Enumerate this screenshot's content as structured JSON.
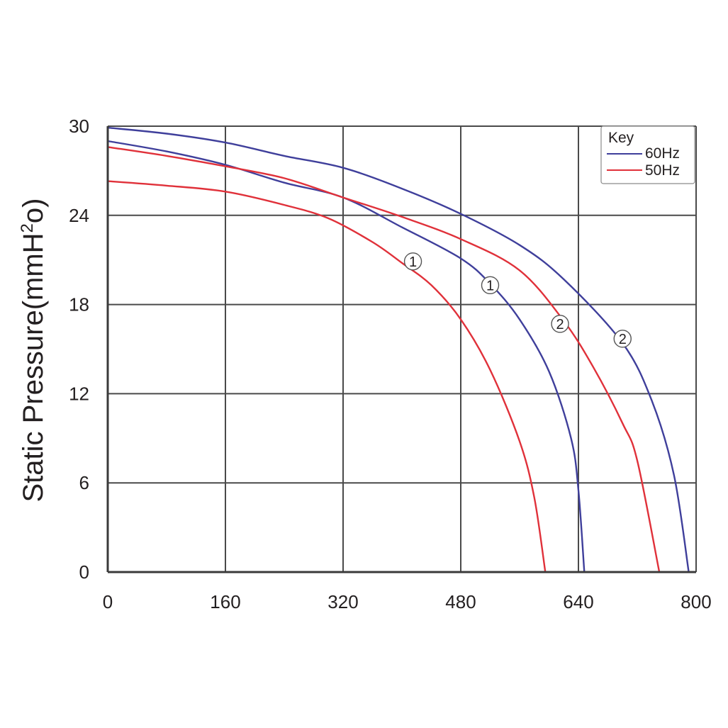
{
  "chart_data": {
    "type": "line",
    "title": "",
    "xlabel": "",
    "ylabel_main": "Static Pressure(mmH",
    "ylabel_sup": "2",
    "ylabel_tail": "o)",
    "xlim": [
      0,
      800
    ],
    "ylim": [
      0,
      30
    ],
    "xticks": [
      "0",
      "160",
      "320",
      "480",
      "640",
      "800"
    ],
    "yticks": [
      "0",
      "6",
      "12",
      "18",
      "24",
      "30"
    ],
    "xtick_values": [
      0,
      160,
      320,
      480,
      640,
      800
    ],
    "ytick_values": [
      0,
      6,
      12,
      18,
      24,
      30
    ],
    "grid": true,
    "legend": {
      "title": "Key",
      "placement": "top-right",
      "entries": [
        {
          "label": "60Hz",
          "color": "#3f3f9b"
        },
        {
          "label": "50Hz",
          "color": "#e0313a"
        }
      ]
    },
    "series": [
      {
        "curve_id": "1",
        "frequency": "50Hz",
        "color": "#e0313a",
        "points": [
          [
            0,
            26.3
          ],
          [
            80,
            26.0
          ],
          [
            160,
            25.6
          ],
          [
            240,
            24.7
          ],
          [
            300,
            23.8
          ],
          [
            360,
            22.2
          ],
          [
            400,
            20.8
          ],
          [
            440,
            19.3
          ],
          [
            480,
            17.0
          ],
          [
            520,
            13.6
          ],
          [
            560,
            8.8
          ],
          [
            580,
            5.0
          ],
          [
            595,
            0
          ]
        ]
      },
      {
        "curve_id": "1",
        "frequency": "60Hz",
        "color": "#3f3f9b",
        "points": [
          [
            0,
            29.0
          ],
          [
            80,
            28.3
          ],
          [
            160,
            27.4
          ],
          [
            240,
            26.2
          ],
          [
            320,
            25.2
          ],
          [
            400,
            23.2
          ],
          [
            480,
            21.1
          ],
          [
            520,
            19.4
          ],
          [
            560,
            17.0
          ],
          [
            600,
            13.5
          ],
          [
            630,
            9.0
          ],
          [
            640,
            5.5
          ],
          [
            648,
            0
          ]
        ]
      },
      {
        "curve_id": "2",
        "frequency": "50Hz",
        "color": "#e0313a",
        "points": [
          [
            0,
            28.6
          ],
          [
            80,
            28.0
          ],
          [
            160,
            27.3
          ],
          [
            240,
            26.5
          ],
          [
            320,
            25.2
          ],
          [
            400,
            23.9
          ],
          [
            480,
            22.4
          ],
          [
            560,
            20.3
          ],
          [
            620,
            16.9
          ],
          [
            660,
            13.8
          ],
          [
            700,
            10.0
          ],
          [
            720,
            7.5
          ],
          [
            750,
            0
          ]
        ]
      },
      {
        "curve_id": "2",
        "frequency": "60Hz",
        "color": "#3f3f9b",
        "points": [
          [
            0,
            29.9
          ],
          [
            80,
            29.5
          ],
          [
            160,
            28.9
          ],
          [
            240,
            28.0
          ],
          [
            320,
            27.2
          ],
          [
            400,
            25.8
          ],
          [
            480,
            24.1
          ],
          [
            560,
            22.0
          ],
          [
            620,
            19.7
          ],
          [
            700,
            15.4
          ],
          [
            740,
            11.5
          ],
          [
            770,
            6.5
          ],
          [
            790,
            0
          ]
        ]
      }
    ],
    "annotations": [
      {
        "label": "1",
        "x": 415,
        "y": 20.9,
        "curve": "1-50Hz"
      },
      {
        "label": "1",
        "x": 520,
        "y": 19.3,
        "curve": "1-60Hz"
      },
      {
        "label": "2",
        "x": 615,
        "y": 16.7,
        "curve": "2-50Hz"
      },
      {
        "label": "2",
        "x": 700,
        "y": 15.7,
        "curve": "2-60Hz"
      }
    ]
  }
}
